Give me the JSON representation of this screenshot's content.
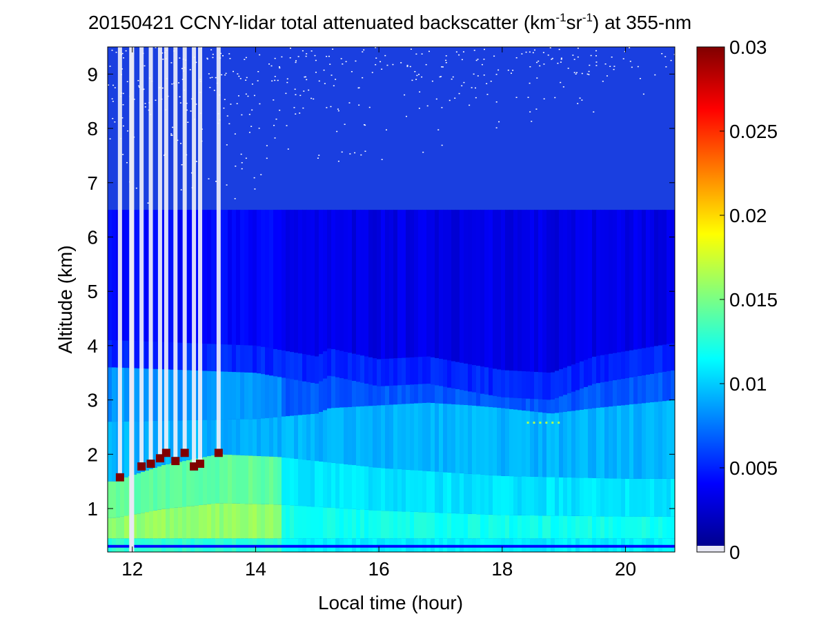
{
  "chart_data": {
    "type": "heatmap",
    "title": {
      "prefix": "20150421 CCNY-lidar total attenuated backscatter (km",
      "exp1": "-1",
      "mid": "sr",
      "exp2": "-1",
      "suffix": ") at 355-nm"
    },
    "xlabel": "Local time (hour)",
    "ylabel": "Altitude (km)",
    "xlim": [
      11.6,
      20.8
    ],
    "ylim": [
      0.2,
      9.5
    ],
    "xticks": [
      12,
      14,
      16,
      18,
      20
    ],
    "yticks": [
      1,
      2,
      3,
      4,
      5,
      6,
      7,
      8,
      9
    ],
    "colorbar": {
      "range": [
        0,
        0.03
      ],
      "ticks": [
        0,
        0.005,
        0.01,
        0.015,
        0.02,
        0.025,
        0.03
      ],
      "tick_labels": [
        "0",
        "0.005",
        "0.01",
        "0.015",
        "0.02",
        "0.025",
        "0.03"
      ],
      "colormap": "jet",
      "invalid_color": "#e8e8f4"
    },
    "features": {
      "surface_layer_top_km": 0.45,
      "boundary_layer_top_km": {
        "hours": [
          11.7,
          12.5,
          13.4,
          14.4,
          16,
          18,
          20,
          20.8
        ],
        "values": [
          1.5,
          1.8,
          2.0,
          1.95,
          1.75,
          1.6,
          1.55,
          1.55
        ]
      },
      "aerosol_layer": {
        "hours": [
          11.7,
          14,
          15,
          15.2,
          16,
          16.8,
          17.5,
          18,
          18.8,
          19.5,
          20.8
        ],
        "base_km": [
          2.6,
          2.65,
          2.75,
          2.85,
          2.9,
          2.95,
          2.9,
          2.85,
          2.75,
          2.85,
          3.0
        ],
        "top_km": [
          3.6,
          3.5,
          3.3,
          3.45,
          3.25,
          3.3,
          3.15,
          3.05,
          3.0,
          3.3,
          3.55
        ]
      },
      "cloud_events": [
        {
          "hour": 11.8,
          "base_km": 1.5
        },
        {
          "hour": 12.15,
          "base_km": 1.7
        },
        {
          "hour": 12.3,
          "base_km": 1.75
        },
        {
          "hour": 12.45,
          "base_km": 1.85
        },
        {
          "hour": 12.55,
          "base_km": 1.95
        },
        {
          "hour": 12.7,
          "base_km": 1.8
        },
        {
          "hour": 12.85,
          "base_km": 1.95
        },
        {
          "hour": 13.0,
          "base_km": 1.7
        },
        {
          "hour": 13.1,
          "base_km": 1.75
        },
        {
          "hour": 13.4,
          "base_km": 1.95
        }
      ],
      "data_gap_hours": [
        11.95,
        12.03
      ],
      "elevated_feature": {
        "hours": [
          18.4,
          19.0
        ],
        "altitude_km": 2.55
      }
    }
  }
}
